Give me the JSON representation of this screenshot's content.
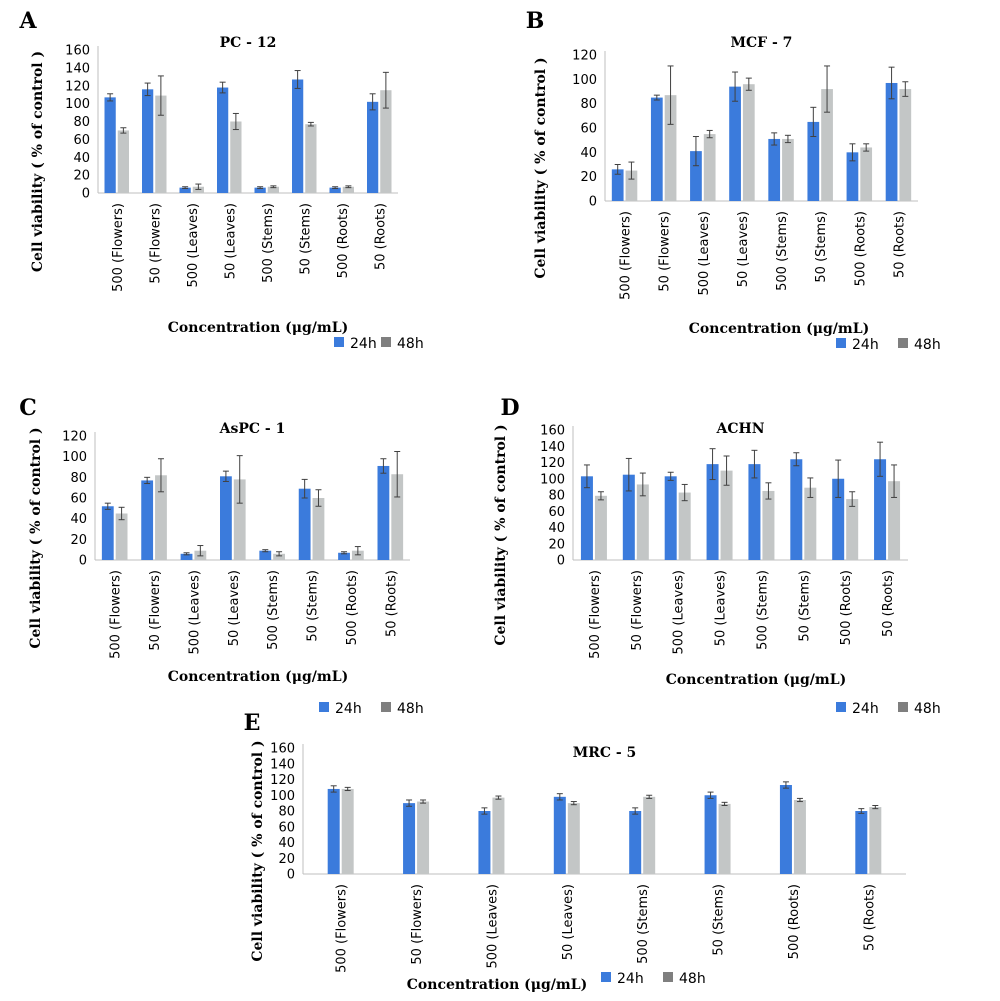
{
  "chart_data": [
    {
      "type": "bar",
      "panel_label": "A",
      "title": "PC - 12",
      "xlabel": "Concentration (μg/mL)",
      "ylabel": "Cell viability ( % of control )",
      "ylim": [
        0,
        160
      ],
      "yticks": [
        0,
        20,
        40,
        60,
        80,
        100,
        120,
        140,
        160
      ],
      "categories": [
        "500 (Flowers)",
        "50 (Flowers)",
        "500 (Leaves)",
        "50 (Leaves)",
        "500 (Stems)",
        "50 (Stems)",
        "500 (Roots)",
        "50 (Roots)"
      ],
      "series": [
        {
          "name": "24h",
          "color": "#3b7bdc",
          "values": [
            107,
            116,
            6,
            118,
            6,
            127,
            6,
            102
          ],
          "errors": [
            4,
            7,
            1,
            6,
            1,
            10,
            1,
            9
          ]
        },
        {
          "name": "48h",
          "color": "#c3c6c6",
          "values": [
            70,
            109,
            7,
            80,
            7,
            77,
            7,
            115
          ],
          "errors": [
            3,
            22,
            3,
            9,
            1,
            2,
            1,
            20
          ]
        }
      ],
      "legend": "bottom-right",
      "grid": false
    },
    {
      "type": "bar",
      "panel_label": "B",
      "title": "MCF - 7",
      "xlabel": "Concentration (μg/mL)",
      "ylabel": "Cell viability ( % of control )",
      "ylim": [
        0,
        120
      ],
      "yticks": [
        0,
        20,
        40,
        60,
        80,
        100,
        120
      ],
      "categories": [
        "500 (Flowers)",
        "50 (Flowers)",
        "500 (Leaves)",
        "50 (Leaves)",
        "500 (Stems)",
        "50 (Stems)",
        "500 (Roots)",
        "50 (Roots)"
      ],
      "series": [
        {
          "name": "24h",
          "color": "#3b7bdc",
          "values": [
            26,
            85,
            41,
            94,
            51,
            65,
            40,
            97
          ],
          "errors": [
            4,
            2,
            12,
            12,
            5,
            12,
            7,
            13
          ]
        },
        {
          "name": "48h",
          "color": "#c3c6c6",
          "values": [
            25,
            87,
            55,
            96,
            51,
            92,
            44,
            92
          ],
          "errors": [
            7,
            24,
            3,
            5,
            3,
            19,
            3,
            6
          ]
        }
      ],
      "legend": "bottom-right",
      "grid": false
    },
    {
      "type": "bar",
      "panel_label": "C",
      "title": "AsPC - 1",
      "xlabel": "Concentration (μg/mL)",
      "ylabel": "Cell viability ( % of control )",
      "ylim": [
        0,
        120
      ],
      "yticks": [
        0,
        20,
        40,
        60,
        80,
        100,
        120
      ],
      "categories": [
        "500 (Flowers)",
        "50 (Flowers)",
        "500 (Leaves)",
        "50 (Leaves)",
        "500 (Stems)",
        "50 (Stems)",
        "500 (Roots)",
        "50 (Roots)"
      ],
      "series": [
        {
          "name": "24h",
          "color": "#3b7bdc",
          "values": [
            52,
            77,
            6,
            81,
            9,
            69,
            7,
            91
          ],
          "errors": [
            3,
            3,
            1,
            5,
            1,
            9,
            1,
            7
          ]
        },
        {
          "name": "48h",
          "color": "#c3c6c6",
          "values": [
            45,
            82,
            9,
            78,
            6,
            60,
            9,
            83
          ],
          "errors": [
            6,
            16,
            5,
            23,
            2,
            8,
            4,
            22
          ]
        }
      ],
      "legend": "bottom-left",
      "grid": false
    },
    {
      "type": "bar",
      "panel_label": "D",
      "title": "ACHN",
      "xlabel": "Concentration (μg/mL)",
      "ylabel": "Cell viability ( % of control )",
      "ylim": [
        0,
        160
      ],
      "yticks": [
        0,
        20,
        40,
        60,
        80,
        100,
        120,
        140,
        160
      ],
      "categories": [
        "500 (Flowers)",
        "50 (Flowers)",
        "500 (Leaves)",
        "50 (Leaves)",
        "500 (Stems)",
        "50 (Stems)",
        "500 (Roots)",
        "50 (Roots)"
      ],
      "series": [
        {
          "name": "24h",
          "color": "#3b7bdc",
          "values": [
            103,
            105,
            103,
            118,
            118,
            124,
            100,
            124
          ],
          "errors": [
            14,
            20,
            5,
            19,
            17,
            8,
            23,
            21
          ]
        },
        {
          "name": "48h",
          "color": "#c3c6c6",
          "values": [
            79,
            93,
            83,
            110,
            85,
            89,
            75,
            97
          ],
          "errors": [
            5,
            14,
            10,
            18,
            10,
            12,
            9,
            20
          ]
        }
      ],
      "legend": "bottom-right",
      "grid": false
    },
    {
      "type": "bar",
      "panel_label": "E",
      "title": "MRC - 5",
      "xlabel": "Concentration (μg/mL)",
      "ylabel": "Cell viability ( % of control )",
      "ylim": [
        0,
        160
      ],
      "yticks": [
        0,
        20,
        40,
        60,
        80,
        100,
        120,
        140,
        160
      ],
      "categories": [
        "500 (Flowers)",
        "50 (Flowers)",
        "500 (Leaves)",
        "50 (Leaves)",
        "500 (Stems)",
        "50 (Stems)",
        "500 (Roots)",
        "50 (Roots)"
      ],
      "series": [
        {
          "name": "24h",
          "color": "#3b7bdc",
          "values": [
            108,
            90,
            80,
            98,
            80,
            100,
            113,
            80
          ],
          "errors": [
            4,
            4,
            4,
            4,
            4,
            4,
            4,
            3
          ]
        },
        {
          "name": "48h",
          "color": "#c3c6c6",
          "values": [
            108,
            92,
            97,
            90,
            98,
            89,
            94,
            85
          ],
          "errors": [
            2,
            2,
            2,
            2,
            2,
            2,
            2,
            2
          ]
        }
      ],
      "legend": "right-of-xlabel",
      "grid": false
    }
  ]
}
